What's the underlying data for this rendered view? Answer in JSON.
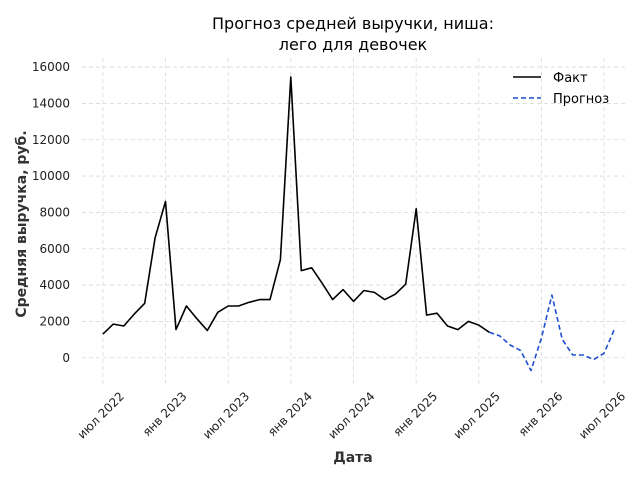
{
  "chart_data": {
    "type": "line",
    "title": "Прогноз средней выручки, ниша:\nлего для девочек",
    "xlabel": "Дата",
    "ylabel": "Средняя выручка, руб.",
    "ylim": [
      -1500,
      16500
    ],
    "y_ticks": [
      0,
      2000,
      4000,
      6000,
      8000,
      10000,
      12000,
      14000,
      16000
    ],
    "x_ticks": [
      {
        "label": "июл 2022",
        "month": "2022-07"
      },
      {
        "label": "янв 2023",
        "month": "2023-01"
      },
      {
        "label": "июл 2023",
        "month": "2023-07"
      },
      {
        "label": "янв 2024",
        "month": "2024-01"
      },
      {
        "label": "июл 2024",
        "month": "2024-07"
      },
      {
        "label": "янв 2025",
        "month": "2025-01"
      },
      {
        "label": "июл 2025",
        "month": "2025-07"
      },
      {
        "label": "янв 2026",
        "month": "2026-01"
      },
      {
        "label": "июл 2026",
        "month": "2026-07"
      }
    ],
    "xlim": [
      "2022-05",
      "2026-09"
    ],
    "grid": true,
    "legend_position": "top-right",
    "series": [
      {
        "name": "Факт",
        "color": "#000000",
        "style": "solid",
        "x": [
          "2022-07",
          "2022-08",
          "2022-09",
          "2022-10",
          "2022-11",
          "2022-12",
          "2023-01",
          "2023-02",
          "2023-03",
          "2023-04",
          "2023-05",
          "2023-06",
          "2023-07",
          "2023-08",
          "2023-09",
          "2023-10",
          "2023-11",
          "2023-12",
          "2024-01",
          "2024-02",
          "2024-03",
          "2024-04",
          "2024-05",
          "2024-06",
          "2024-07",
          "2024-08",
          "2024-09",
          "2024-10",
          "2024-11",
          "2024-12",
          "2025-01",
          "2025-02",
          "2025-03",
          "2025-04",
          "2025-05",
          "2025-06",
          "2025-07",
          "2025-08"
        ],
        "y": [
          1300,
          1850,
          1750,
          2400,
          3000,
          6600,
          8600,
          1550,
          2850,
          2150,
          1500,
          2500,
          2850,
          2850,
          3050,
          3200,
          3200,
          5400,
          15450,
          4800,
          4950,
          4100,
          3200,
          3750,
          3100,
          3700,
          3600,
          3200,
          3500,
          4050,
          8200,
          2350,
          2450,
          1750,
          1550,
          2000,
          1800,
          1400
        ]
      },
      {
        "name": "Прогноз",
        "color": "#1f4fd1",
        "style": "dashed",
        "x": [
          "2025-08",
          "2025-09",
          "2025-10",
          "2025-11",
          "2025-12",
          "2026-01",
          "2026-02",
          "2026-03",
          "2026-04",
          "2026-05",
          "2026-06",
          "2026-07",
          "2026-08"
        ],
        "y": [
          1400,
          1200,
          700,
          400,
          -700,
          1100,
          3450,
          1000,
          150,
          150,
          -100,
          250,
          1600
        ]
      }
    ]
  }
}
